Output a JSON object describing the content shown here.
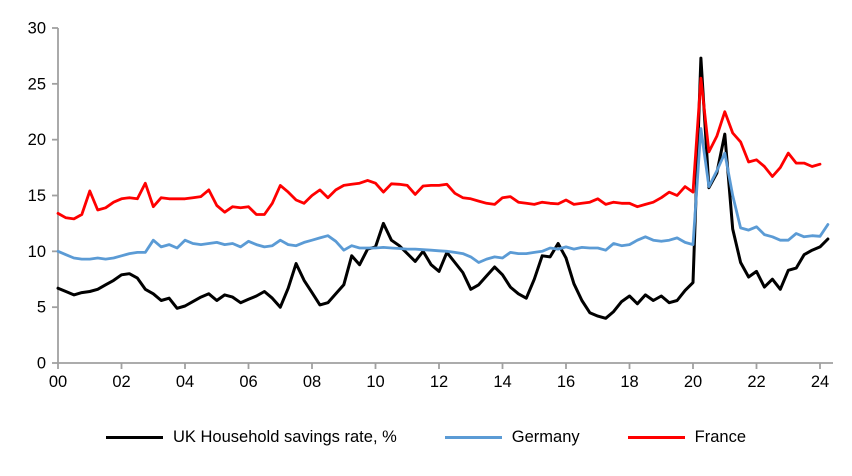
{
  "chart_data": {
    "type": "line",
    "title": "",
    "frequency": "quarterly",
    "x_start_label": "2000 Q1",
    "x_tick_labels": [
      "00",
      "02",
      "04",
      "06",
      "08",
      "10",
      "12",
      "14",
      "16",
      "18",
      "20",
      "22",
      "24"
    ],
    "y_tick_labels": [
      "0",
      "5",
      "10",
      "15",
      "20",
      "25",
      "30"
    ],
    "ylim": [
      0,
      30
    ],
    "grid": false,
    "legend_position": "bottom",
    "series": [
      {
        "id": "uk",
        "name": "UK Household savings rate, %",
        "color": "#000000",
        "values": [
          6.7,
          6.4,
          6.1,
          6.3,
          6.4,
          6.6,
          7.0,
          7.4,
          7.9,
          8.0,
          7.6,
          6.6,
          6.2,
          5.6,
          5.8,
          4.9,
          5.1,
          5.5,
          5.9,
          6.2,
          5.6,
          6.1,
          5.9,
          5.4,
          5.7,
          6.0,
          6.4,
          5.8,
          5.0,
          6.7,
          8.9,
          7.4,
          6.3,
          5.2,
          5.4,
          6.2,
          7.0,
          9.6,
          8.8,
          10.2,
          10.4,
          12.5,
          11.0,
          10.5,
          9.8,
          9.1,
          10.0,
          8.8,
          8.2,
          9.9,
          9.0,
          8.1,
          6.6,
          7.0,
          7.8,
          8.6,
          7.9,
          6.8,
          6.2,
          5.8,
          7.5,
          9.6,
          9.5,
          10.7,
          9.4,
          7.1,
          5.6,
          4.5,
          4.2,
          4.0,
          4.6,
          5.5,
          6.0,
          5.3,
          6.1,
          5.6,
          6.0,
          5.4,
          5.6,
          6.5,
          7.2,
          27.3,
          15.7,
          17.0,
          20.5,
          12.0,
          9.0,
          7.7,
          8.2,
          6.8,
          7.5,
          6.6,
          8.3,
          8.5,
          9.7,
          10.1,
          10.4,
          11.1
        ]
      },
      {
        "id": "germany",
        "name": "Germany",
        "color": "#5B9BD5",
        "values": [
          10.0,
          9.7,
          9.4,
          9.3,
          9.3,
          9.4,
          9.3,
          9.4,
          9.6,
          9.8,
          9.9,
          9.9,
          11.0,
          10.4,
          10.6,
          10.3,
          11.0,
          10.7,
          10.6,
          10.7,
          10.8,
          10.6,
          10.7,
          10.4,
          10.9,
          10.6,
          10.4,
          10.5,
          11.0,
          10.6,
          10.5,
          10.8,
          11.0,
          11.2,
          11.4,
          10.9,
          10.1,
          10.5,
          10.3,
          10.3,
          10.3,
          10.35,
          10.3,
          10.25,
          10.2,
          10.2,
          10.15,
          10.1,
          10.05,
          10.0,
          9.9,
          9.8,
          9.5,
          9.0,
          9.3,
          9.5,
          9.4,
          9.9,
          9.8,
          9.8,
          9.9,
          10.0,
          10.3,
          10.2,
          10.4,
          10.2,
          10.35,
          10.3,
          10.3,
          10.1,
          10.7,
          10.5,
          10.6,
          11.0,
          11.3,
          11.0,
          10.9,
          11.0,
          11.2,
          10.8,
          10.6,
          21.0,
          15.8,
          17.2,
          18.8,
          15.0,
          12.1,
          11.9,
          12.2,
          11.5,
          11.3,
          11.0,
          11.0,
          11.6,
          11.3,
          11.4,
          11.35,
          12.4
        ]
      },
      {
        "id": "france",
        "name": "France",
        "color": "#FF0000",
        "values": [
          13.4,
          13.0,
          12.9,
          13.3,
          15.4,
          13.7,
          13.9,
          14.4,
          14.7,
          14.8,
          14.7,
          16.1,
          14.0,
          14.8,
          14.7,
          14.7,
          14.7,
          14.8,
          14.9,
          15.5,
          14.1,
          13.5,
          14.0,
          13.9,
          14.0,
          13.3,
          13.3,
          14.3,
          15.9,
          15.3,
          14.6,
          14.3,
          15.0,
          15.5,
          14.8,
          15.5,
          15.9,
          16.0,
          16.1,
          16.35,
          16.1,
          15.3,
          16.05,
          16.0,
          15.9,
          15.1,
          15.85,
          15.9,
          15.9,
          16.0,
          15.2,
          14.8,
          14.7,
          14.5,
          14.3,
          14.2,
          14.8,
          14.9,
          14.4,
          14.3,
          14.2,
          14.4,
          14.3,
          14.25,
          14.6,
          14.2,
          14.3,
          14.4,
          14.7,
          14.2,
          14.4,
          14.3,
          14.3,
          14.0,
          14.2,
          14.4,
          14.8,
          15.3,
          15.0,
          15.8,
          15.3,
          25.5,
          18.9,
          20.3,
          22.5,
          20.6,
          19.8,
          18.0,
          18.2,
          17.6,
          16.7,
          17.5,
          18.8,
          17.9,
          17.9,
          17.6,
          17.8
        ]
      }
    ]
  }
}
